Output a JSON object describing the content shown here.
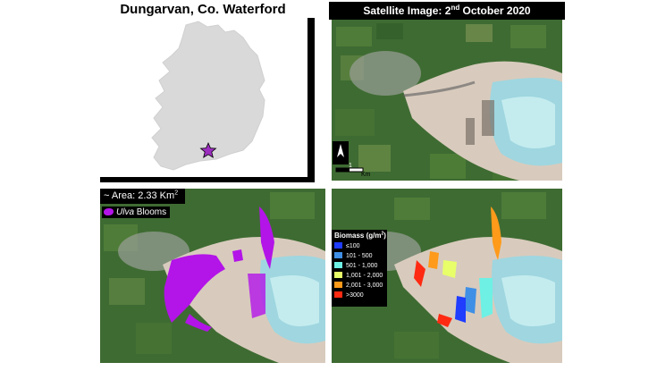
{
  "locator": {
    "title": "Dungarvan, Co. Waterford"
  },
  "satellite": {
    "header_prefix": "Satellite Image: 2",
    "header_sup": "nd",
    "header_suffix": " October 2020",
    "scale_label": "Km",
    "scale_value": "1"
  },
  "ulva_panel": {
    "area_prefix": "~ Area: 2.33 Km",
    "area_sup": "2",
    "legend_italic": "Ulva",
    "legend_suffix": " Blooms",
    "bloom_color": "#b314e8"
  },
  "biomass_panel": {
    "legend_title": "Biomass (g/m",
    "legend_title_sup": "2",
    "legend_title_end": ")",
    "classes": [
      {
        "label": "≤100",
        "color": "#1f3cff"
      },
      {
        "label": "101 - 500",
        "color": "#3f8fe6"
      },
      {
        "label": "501 - 1,000",
        "color": "#6ef0e4"
      },
      {
        "label": "1,001 - 2,000",
        "color": "#e8ff6a"
      },
      {
        "label": "2,001 - 3,000",
        "color": "#ff9a1a"
      },
      {
        "label": ">3000",
        "color": "#ff2a12"
      }
    ]
  },
  "colors": {
    "field_green": "#3e6b32",
    "sand": "#d8cbbd",
    "water": "#9fd6e0",
    "ireland_gray": "#d9d9d9",
    "star": "#9c2fbf"
  }
}
